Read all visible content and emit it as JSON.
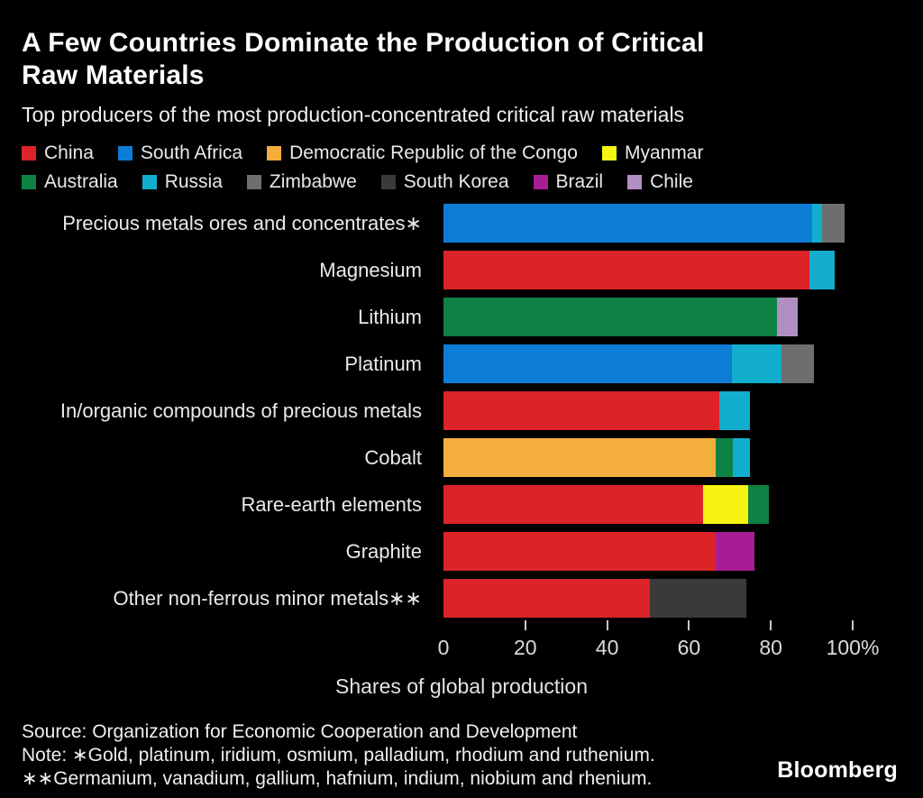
{
  "header": {
    "title_lines": [
      "A Few Countries Dominate the Production of Critical",
      "Raw Materials"
    ],
    "subtitle": "Top producers of the most production-concentrated critical raw materials"
  },
  "legend": {
    "rows": [
      [
        {
          "label": "China",
          "color": "#dc2327"
        },
        {
          "label": "South Africa",
          "color": "#0d7cd6"
        },
        {
          "label": "Democratic Republic of the Congo",
          "color": "#f4ae3b"
        },
        {
          "label": "Myanmar",
          "color": "#f6f410"
        }
      ],
      [
        {
          "label": "Australia",
          "color": "#0e8144"
        },
        {
          "label": "Russia",
          "color": "#13aecd"
        },
        {
          "label": "Zimbabwe",
          "color": "#6e6e6e"
        },
        {
          "label": "South Korea",
          "color": "#3a3a3a"
        },
        {
          "label": "Brazil",
          "color": "#a81d93"
        },
        {
          "label": "Chile",
          "color": "#b28fc3"
        }
      ]
    ]
  },
  "chart_data": {
    "type": "bar",
    "orientation": "horizontal",
    "stacked": true,
    "unit": "percent share",
    "title": "A Few Countries Dominate the Production of Critical Raw Materials",
    "subtitle": "Top producers of the most production-concentrated critical raw materials",
    "xlabel": "Shares of global production",
    "ylabel": "",
    "xlim": [
      0,
      100
    ],
    "x_ticks": [
      0,
      20,
      40,
      60,
      80,
      100
    ],
    "x_tick_labels": [
      "0",
      "20",
      "40",
      "60",
      "80",
      "100%"
    ],
    "grid": false,
    "legend_position": "top",
    "categories": [
      "Precious metals ores and concentrates∗",
      "Magnesium",
      "Lithium",
      "Platinum",
      "In/organic compounds of precious metals",
      "Cobalt",
      "Rare-earth elements",
      "Graphite",
      "Other non-ferrous minor metals∗∗"
    ],
    "rows": [
      {
        "category": "Precious metals ores and concentrates∗",
        "segments": [
          {
            "name": "South Africa",
            "value": 90
          },
          {
            "name": "Russia",
            "value": 2.5
          },
          {
            "name": "Zimbabwe",
            "value": 5.5
          }
        ]
      },
      {
        "category": "Magnesium",
        "segments": [
          {
            "name": "China",
            "value": 89.5
          },
          {
            "name": "Russia",
            "value": 6
          }
        ]
      },
      {
        "category": "Lithium",
        "segments": [
          {
            "name": "Australia",
            "value": 81.5
          },
          {
            "name": "Chile",
            "value": 5
          }
        ]
      },
      {
        "category": "Platinum",
        "segments": [
          {
            "name": "South Africa",
            "value": 70.5
          },
          {
            "name": "Russia",
            "value": 12
          },
          {
            "name": "Zimbabwe",
            "value": 8
          }
        ]
      },
      {
        "category": "In/organic compounds of precious metals",
        "segments": [
          {
            "name": "China",
            "value": 67.5
          },
          {
            "name": "Russia",
            "value": 7.5
          }
        ]
      },
      {
        "category": "Cobalt",
        "segments": [
          {
            "name": "Democratic Republic of the Congo",
            "value": 66.5
          },
          {
            "name": "Australia",
            "value": 4.2
          },
          {
            "name": "Russia",
            "value": 4.2
          }
        ]
      },
      {
        "category": "Rare-earth elements",
        "segments": [
          {
            "name": "China",
            "value": 63.5
          },
          {
            "name": "Myanmar",
            "value": 11
          },
          {
            "name": "Australia",
            "value": 5
          }
        ]
      },
      {
        "category": "Graphite",
        "segments": [
          {
            "name": "China",
            "value": 66.5
          },
          {
            "name": "Brazil",
            "value": 9.5
          }
        ]
      },
      {
        "category": "Other non-ferrous minor metals∗∗",
        "segments": [
          {
            "name": "China",
            "value": 50.5
          },
          {
            "name": "South Korea",
            "value": 23.5
          }
        ]
      }
    ]
  },
  "footer": {
    "source": "Source: Organization for Economic Cooperation and Development",
    "note1": "Note: ∗Gold, platinum, iridium, osmium, palladium, rhodium and ruthenium.",
    "note2": "∗∗Germanium, vanadium, gallium, hafnium, indium, niobium and rhenium.",
    "brand": "Bloomberg"
  }
}
